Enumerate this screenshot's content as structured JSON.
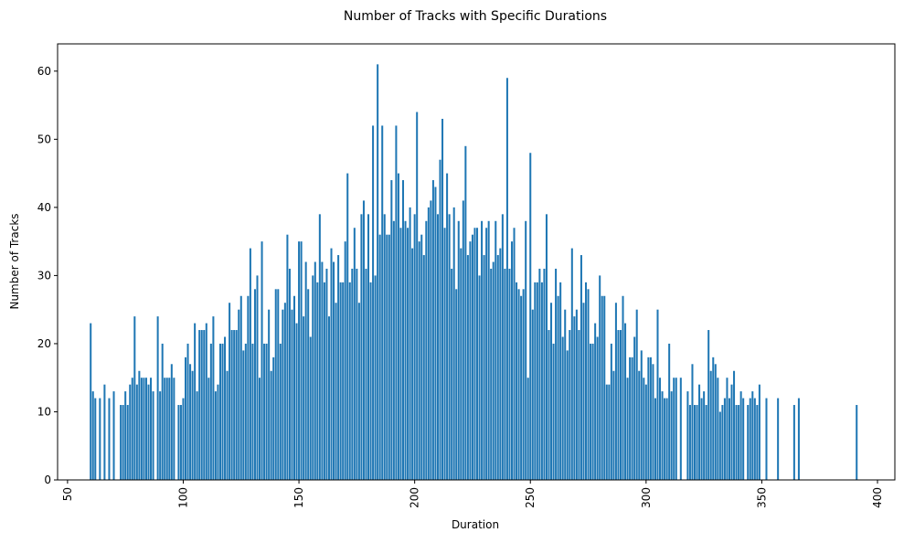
{
  "chart_data": {
    "type": "bar",
    "title": "Number of Tracks with Specific Durations",
    "xlabel": "Duration",
    "ylabel": "Number of Tracks",
    "color": "#1f77b4",
    "x": [
      60,
      61,
      62,
      64,
      66,
      68,
      70,
      73,
      74,
      75,
      76,
      77,
      78,
      79,
      80,
      81,
      82,
      83,
      84,
      85,
      86,
      87,
      89,
      90,
      91,
      92,
      93,
      94,
      95,
      96,
      98,
      99,
      100,
      101,
      102,
      103,
      104,
      105,
      106,
      107,
      108,
      109,
      110,
      111,
      112,
      113,
      114,
      115,
      116,
      117,
      118,
      119,
      120,
      121,
      122,
      123,
      124,
      125,
      126,
      127,
      128,
      129,
      130,
      131,
      132,
      133,
      134,
      135,
      136,
      137,
      138,
      139,
      140,
      141,
      142,
      143,
      144,
      145,
      146,
      147,
      148,
      149,
      150,
      151,
      152,
      153,
      154,
      155,
      156,
      157,
      158,
      159,
      160,
      161,
      162,
      163,
      164,
      165,
      166,
      167,
      168,
      169,
      170,
      171,
      172,
      173,
      174,
      175,
      176,
      177,
      178,
      179,
      180,
      181,
      182,
      183,
      184,
      185,
      186,
      187,
      188,
      189,
      190,
      191,
      192,
      193,
      194,
      195,
      196,
      197,
      198,
      199,
      200,
      201,
      202,
      203,
      204,
      205,
      206,
      207,
      208,
      209,
      210,
      211,
      212,
      213,
      214,
      215,
      216,
      217,
      218,
      219,
      220,
      221,
      222,
      223,
      224,
      225,
      226,
      227,
      228,
      229,
      230,
      231,
      232,
      233,
      234,
      235,
      236,
      237,
      238,
      239,
      240,
      241,
      242,
      243,
      244,
      245,
      246,
      247,
      248,
      249,
      250,
      251,
      252,
      253,
      254,
      255,
      256,
      257,
      258,
      259,
      260,
      261,
      262,
      263,
      264,
      265,
      266,
      267,
      268,
      269,
      270,
      271,
      272,
      273,
      274,
      275,
      276,
      277,
      278,
      279,
      280,
      281,
      282,
      283,
      284,
      285,
      286,
      287,
      288,
      289,
      290,
      291,
      292,
      293,
      294,
      295,
      296,
      297,
      298,
      299,
      300,
      301,
      302,
      303,
      304,
      305,
      306,
      307,
      308,
      309,
      310,
      311,
      312,
      313,
      315,
      318,
      319,
      320,
      321,
      322,
      323,
      324,
      325,
      326,
      327,
      328,
      329,
      330,
      331,
      332,
      333,
      334,
      335,
      336,
      337,
      338,
      339,
      340,
      341,
      342,
      344,
      345,
      346,
      347,
      348,
      349,
      352,
      357,
      364,
      366,
      391
    ],
    "values": [
      23,
      13,
      12,
      12,
      14,
      12,
      13,
      11,
      11,
      13,
      11,
      14,
      15,
      24,
      14,
      16,
      15,
      15,
      15,
      14,
      15,
      13,
      24,
      13,
      20,
      15,
      15,
      15,
      17,
      15,
      11,
      11,
      12,
      18,
      20,
      17,
      16,
      23,
      13,
      22,
      22,
      22,
      23,
      15,
      20,
      24,
      13,
      14,
      20,
      20,
      21,
      16,
      26,
      22,
      22,
      22,
      25,
      27,
      19,
      20,
      27,
      34,
      20,
      28,
      30,
      15,
      35,
      20,
      20,
      25,
      16,
      18,
      28,
      28,
      20,
      25,
      26,
      36,
      31,
      25,
      27,
      23,
      35,
      35,
      24,
      32,
      28,
      21,
      30,
      32,
      29,
      39,
      32,
      29,
      31,
      24,
      34,
      32,
      26,
      33,
      29,
      29,
      35,
      45,
      29,
      31,
      37,
      31,
      26,
      39,
      41,
      31,
      39,
      29,
      52,
      30,
      61,
      36,
      52,
      39,
      36,
      36,
      44,
      38,
      52,
      45,
      37,
      44,
      38,
      37,
      40,
      34,
      39,
      54,
      35,
      36,
      33,
      38,
      40,
      41,
      44,
      43,
      39,
      47,
      53,
      37,
      45,
      39,
      31,
      40,
      28,
      38,
      34,
      41,
      49,
      33,
      35,
      36,
      37,
      37,
      30,
      38,
      33,
      37,
      38,
      31,
      32,
      38,
      33,
      34,
      39,
      31,
      59,
      31,
      35,
      37,
      29,
      28,
      27,
      28,
      38,
      15,
      48,
      25,
      29,
      29,
      31,
      29,
      31,
      39,
      22,
      26,
      20,
      31,
      27,
      29,
      21,
      25,
      19,
      22,
      34,
      24,
      25,
      22,
      33,
      26,
      29,
      28,
      20,
      20,
      23,
      21,
      30,
      27,
      27,
      14,
      14,
      20,
      16,
      26,
      22,
      22,
      27,
      23,
      15,
      18,
      18,
      21,
      25,
      16,
      19,
      15,
      14,
      18,
      18,
      17,
      12,
      25,
      15,
      13,
      12,
      12,
      20,
      13,
      15,
      15,
      15,
      13,
      11,
      17,
      11,
      11,
      14,
      12,
      13,
      11,
      22,
      16,
      18,
      17,
      15,
      10,
      11,
      12,
      15,
      12,
      14,
      16,
      11,
      11,
      13,
      12,
      11,
      12,
      13,
      12,
      11,
      14,
      12,
      12,
      11,
      12,
      11
    ],
    "xlim": [
      45.7,
      407.5
    ],
    "ylim": [
      0,
      64
    ],
    "xticks": [
      50,
      100,
      150,
      200,
      250,
      300,
      350,
      400
    ],
    "yticks": [
      0,
      10,
      20,
      30,
      40,
      50,
      60
    ]
  }
}
